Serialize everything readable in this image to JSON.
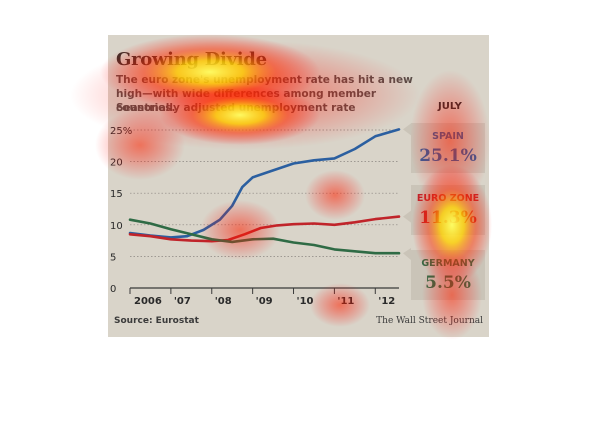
{
  "chart_data": {
    "type": "line",
    "title": "Growing Divide",
    "subtitle": "The euro zone's unemployment rate has hit a new high—with wide differences among member countries.",
    "unit_label": "Seasonally adjusted unemployment rate",
    "month_label": "JULY",
    "source": "Source: Eurostat",
    "credit": "The Wall Street Journal",
    "ylim": [
      0,
      25
    ],
    "yticks": [
      {
        "value": 0,
        "label": "0"
      },
      {
        "value": 5,
        "label": "5"
      },
      {
        "value": 10,
        "label": "10"
      },
      {
        "value": 15,
        "label": "15"
      },
      {
        "value": 20,
        "label": "20"
      },
      {
        "value": 25,
        "label": "25%"
      }
    ],
    "xlim": [
      2006.0,
      2012.58
    ],
    "xticks": [
      {
        "value": 2006,
        "label": "2006"
      },
      {
        "value": 2007,
        "label": "'07"
      },
      {
        "value": 2008,
        "label": "'08"
      },
      {
        "value": 2009,
        "label": "'09"
      },
      {
        "value": 2010,
        "label": "'10"
      },
      {
        "value": 2011,
        "label": "'11"
      },
      {
        "value": 2012,
        "label": "'12"
      }
    ],
    "grid": true,
    "series": [
      {
        "name": "SPAIN",
        "end_label": "25.1%",
        "color": "#2b5fa0",
        "points": [
          [
            2006.0,
            8.7
          ],
          [
            2006.5,
            8.3
          ],
          [
            2007.0,
            8.0
          ],
          [
            2007.4,
            8.2
          ],
          [
            2007.8,
            9.2
          ],
          [
            2008.2,
            10.8
          ],
          [
            2008.5,
            13.0
          ],
          [
            2008.75,
            16.0
          ],
          [
            2009.0,
            17.5
          ],
          [
            2009.5,
            18.6
          ],
          [
            2010.0,
            19.7
          ],
          [
            2010.5,
            20.2
          ],
          [
            2011.0,
            20.5
          ],
          [
            2011.5,
            22.0
          ],
          [
            2012.0,
            24.0
          ],
          [
            2012.58,
            25.1
          ]
        ]
      },
      {
        "name": "EURO ZONE",
        "end_label": "11.3%",
        "color": "#c0242a",
        "points": [
          [
            2006.0,
            8.5
          ],
          [
            2006.5,
            8.2
          ],
          [
            2007.0,
            7.7
          ],
          [
            2007.5,
            7.5
          ],
          [
            2008.0,
            7.4
          ],
          [
            2008.4,
            7.6
          ],
          [
            2008.8,
            8.5
          ],
          [
            2009.2,
            9.5
          ],
          [
            2009.6,
            9.9
          ],
          [
            2010.0,
            10.1
          ],
          [
            2010.5,
            10.2
          ],
          [
            2011.0,
            10.0
          ],
          [
            2011.5,
            10.4
          ],
          [
            2012.0,
            10.9
          ],
          [
            2012.58,
            11.3
          ]
        ]
      },
      {
        "name": "GERMANY",
        "end_label": "5.5%",
        "color": "#2f6b45",
        "points": [
          [
            2006.0,
            10.8
          ],
          [
            2006.5,
            10.2
          ],
          [
            2007.0,
            9.3
          ],
          [
            2007.5,
            8.5
          ],
          [
            2008.0,
            7.7
          ],
          [
            2008.5,
            7.3
          ],
          [
            2009.0,
            7.7
          ],
          [
            2009.5,
            7.8
          ],
          [
            2010.0,
            7.2
          ],
          [
            2010.5,
            6.8
          ],
          [
            2011.0,
            6.1
          ],
          [
            2011.5,
            5.8
          ],
          [
            2012.0,
            5.5
          ],
          [
            2012.58,
            5.5
          ]
        ]
      }
    ]
  }
}
